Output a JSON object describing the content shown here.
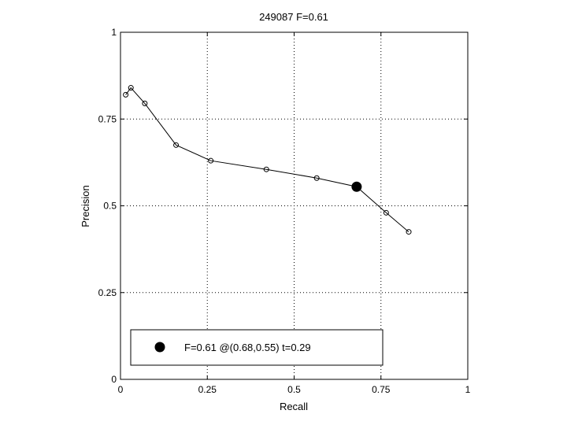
{
  "chart_data": {
    "type": "line",
    "title": "249087 F=0.61",
    "xlabel": "Recall",
    "ylabel": "Precision",
    "xlim": [
      0,
      1
    ],
    "ylim": [
      0,
      1
    ],
    "grid": true,
    "x_ticks": [
      0,
      0.25,
      0.5,
      0.75,
      1
    ],
    "y_ticks": [
      0,
      0.25,
      0.5,
      0.75,
      1
    ],
    "x_tick_labels": [
      "0",
      "0.25",
      "0.5",
      "0.75",
      "1"
    ],
    "y_tick_labels": [
      "0",
      "0.25",
      "0.5",
      "0.75",
      "1"
    ],
    "series": [
      {
        "marker": "open-circle",
        "color": "#000000",
        "x": [
          0.015,
          0.03,
          0.07,
          0.16,
          0.26,
          0.42,
          0.565,
          0.68,
          0.765,
          0.83
        ],
        "y": [
          0.82,
          0.84,
          0.795,
          0.675,
          0.63,
          0.605,
          0.58,
          0.555,
          0.48,
          0.425
        ]
      }
    ],
    "highlight_point": {
      "x": 0.68,
      "y": 0.555,
      "marker": "filled-circle",
      "color": "#000000"
    },
    "legend": {
      "placement": "bottom-left",
      "entries": [
        "F=0.61 @(0.68,0.55) t=0.29"
      ]
    }
  }
}
